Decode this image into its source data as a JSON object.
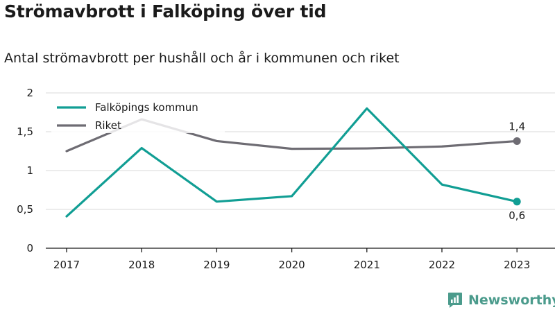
{
  "title": "Strömavbrott i Falköping över tid",
  "subtitle": "Antal strömavbrott per hushåll och år i kommunen och riket",
  "brand": "Newsworthy",
  "colors": {
    "kommun": "#119e94",
    "riket": "#6e6c73",
    "grid": "#d9d9d9",
    "axis": "#1a1a1a",
    "brand": "#4b9b8c"
  },
  "chart_data": {
    "type": "line",
    "categories": [
      "2017",
      "2018",
      "2019",
      "2020",
      "2021",
      "2022",
      "2023"
    ],
    "ylim": [
      0,
      2
    ],
    "y_ticks": [
      "0",
      "0,5",
      "1",
      "1,5",
      "2"
    ],
    "grid": true,
    "legend_position": "top-left",
    "series": [
      {
        "name": "Falköpings kommun",
        "color": "#119e94",
        "values": [
          0.41,
          1.29,
          0.6,
          0.67,
          1.8,
          0.82,
          0.6
        ],
        "end_label": "0,6"
      },
      {
        "name": "Riket",
        "color": "#6e6c73",
        "values": [
          1.25,
          1.66,
          1.38,
          1.28,
          1.285,
          1.31,
          1.38
        ],
        "end_label": "1,4"
      }
    ]
  }
}
